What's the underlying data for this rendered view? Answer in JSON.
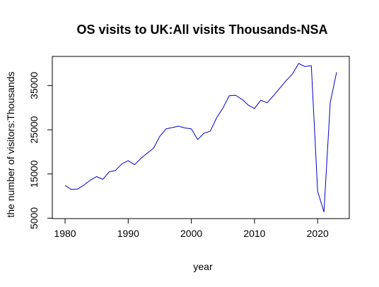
{
  "chart_data": {
    "type": "line",
    "title": "OS visits to UK:All visits Thousands-NSA",
    "xlabel": "year",
    "ylabel": "the number of visitors:Thousands",
    "xlim": [
      1980,
      2023
    ],
    "ylim": [
      6500,
      40000
    ],
    "x_ticks": [
      1980,
      1990,
      2000,
      2010,
      2020
    ],
    "y_ticks": [
      5000,
      15000,
      25000,
      35000
    ],
    "grid": false,
    "legend": "none",
    "series": [
      {
        "color": "#0000cc",
        "x": [
          1980,
          1981,
          1982,
          1983,
          1984,
          1985,
          1986,
          1987,
          1988,
          1989,
          1990,
          1991,
          1992,
          1993,
          1994,
          1995,
          1996,
          1997,
          1998,
          1999,
          2000,
          2001,
          2002,
          2003,
          2004,
          2005,
          2006,
          2007,
          2008,
          2009,
          2010,
          2011,
          2012,
          2013,
          2014,
          2015,
          2016,
          2017,
          2018,
          2019,
          2020,
          2021,
          2022,
          2023
        ],
        "values": [
          12400,
          11500,
          11600,
          12500,
          13600,
          14400,
          13800,
          15500,
          15800,
          17300,
          18000,
          17100,
          18500,
          19700,
          20800,
          23500,
          25200,
          25500,
          25800,
          25400,
          25200,
          22800,
          24200,
          24700,
          27700,
          29900,
          32700,
          32800,
          31900,
          30600,
          29800,
          31700,
          31100,
          32700,
          34400,
          36100,
          37600,
          40000,
          39300,
          39500,
          11100,
          6400,
          31200,
          38000
        ]
      }
    ]
  }
}
